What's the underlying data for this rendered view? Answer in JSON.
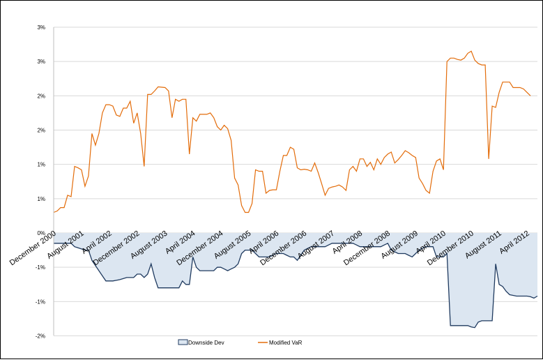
{
  "chart_data": {
    "type": "line",
    "title": "",
    "xlabel": "",
    "ylabel": "",
    "ylim": [
      -0.02,
      0.03
    ],
    "grid": true,
    "legend_position": "bottom",
    "colors": {
      "downside_fill": "#dce6f1",
      "downside_line": "#1f3a5f",
      "var_line": "#e36c0a",
      "grid": "#d9d9d9"
    },
    "y_tick_labels": [
      {
        "value": 0.03,
        "label": "3%"
      },
      {
        "value": 0.025,
        "label": "3%"
      },
      {
        "value": 0.02,
        "label": "2%"
      },
      {
        "value": 0.015,
        "label": "2%"
      },
      {
        "value": 0.01,
        "label": "1%"
      },
      {
        "value": 0.005,
        "label": "1%"
      },
      {
        "value": 0.0,
        "label": "0%"
      },
      {
        "value": -0.005,
        "label": "-1%"
      },
      {
        "value": -0.01,
        "label": "-1%"
      },
      {
        "value": -0.015,
        "label": "-2%"
      }
    ],
    "x_tick_labels": [
      {
        "index": 0,
        "label": "December 2000"
      },
      {
        "index": 8,
        "label": "August 2001"
      },
      {
        "index": 16,
        "label": "April 2002"
      },
      {
        "index": 24,
        "label": "December 2002"
      },
      {
        "index": 32,
        "label": "August 2003"
      },
      {
        "index": 40,
        "label": "April 2004"
      },
      {
        "index": 48,
        "label": "December 2004"
      },
      {
        "index": 56,
        "label": "August 2005"
      },
      {
        "index": 64,
        "label": "April 2006"
      },
      {
        "index": 72,
        "label": "December 2006"
      },
      {
        "index": 80,
        "label": "August 2007"
      },
      {
        "index": 88,
        "label": "April 2008"
      },
      {
        "index": 96,
        "label": "December 2008"
      },
      {
        "index": 104,
        "label": "August 2009"
      },
      {
        "index": 112,
        "label": "April 2010"
      },
      {
        "index": 120,
        "label": "December 2010"
      },
      {
        "index": 128,
        "label": "August 2011"
      },
      {
        "index": 136,
        "label": "April 2012"
      }
    ],
    "series": [
      {
        "name": "Downside Dev",
        "type": "area",
        "anchors": [
          [
            0,
            -0.0015
          ],
          [
            5,
            -0.0015
          ],
          [
            6,
            -0.002
          ],
          [
            9,
            -0.0025
          ],
          [
            10,
            -0.0025
          ],
          [
            11,
            -0.004
          ],
          [
            13,
            -0.0055
          ],
          [
            15,
            -0.007
          ],
          [
            17,
            -0.007
          ],
          [
            19,
            -0.0068
          ],
          [
            21,
            -0.0065
          ],
          [
            23,
            -0.0065
          ],
          [
            24,
            -0.006
          ],
          [
            25,
            -0.006
          ],
          [
            26,
            -0.0065
          ],
          [
            27,
            -0.006
          ],
          [
            28,
            -0.0045
          ],
          [
            29,
            -0.0065
          ],
          [
            30,
            -0.008
          ],
          [
            32,
            -0.008
          ],
          [
            35,
            -0.008
          ],
          [
            36,
            -0.008
          ],
          [
            37,
            -0.007
          ],
          [
            38,
            -0.0075
          ],
          [
            39,
            -0.0075
          ],
          [
            40,
            -0.0035
          ],
          [
            41,
            -0.005
          ],
          [
            42,
            -0.0055
          ],
          [
            44,
            -0.0055
          ],
          [
            46,
            -0.0055
          ],
          [
            47,
            -0.005
          ],
          [
            48,
            -0.005
          ],
          [
            50,
            -0.0055
          ],
          [
            52,
            -0.005
          ],
          [
            53,
            -0.0045
          ],
          [
            54,
            -0.003
          ],
          [
            55,
            -0.0025
          ],
          [
            57,
            -0.0025
          ],
          [
            59,
            -0.0035
          ],
          [
            60,
            -0.0035
          ],
          [
            62,
            -0.0035
          ],
          [
            64,
            -0.003
          ],
          [
            66,
            -0.003
          ],
          [
            68,
            -0.0035
          ],
          [
            69,
            -0.0035
          ],
          [
            70,
            -0.004
          ],
          [
            72,
            -0.0025
          ],
          [
            74,
            -0.002
          ],
          [
            76,
            -0.002
          ],
          [
            78,
            -0.002
          ],
          [
            80,
            -0.0015
          ],
          [
            82,
            -0.0015
          ],
          [
            84,
            -0.0015
          ],
          [
            86,
            -0.0015
          ],
          [
            88,
            -0.002
          ],
          [
            90,
            -0.002
          ],
          [
            92,
            -0.002
          ],
          [
            94,
            -0.002
          ],
          [
            96,
            -0.0015
          ],
          [
            97,
            -0.0025
          ],
          [
            99,
            -0.003
          ],
          [
            101,
            -0.003
          ],
          [
            103,
            -0.0035
          ],
          [
            105,
            -0.0025
          ],
          [
            107,
            -0.002
          ],
          [
            109,
            -0.002
          ],
          [
            110,
            -0.0035
          ],
          [
            111,
            -0.0035
          ],
          [
            112,
            -0.0035
          ],
          [
            113,
            -0.003
          ],
          [
            114,
            -0.0135
          ],
          [
            115,
            -0.0135
          ],
          [
            117,
            -0.0135
          ],
          [
            119,
            -0.0135
          ],
          [
            120,
            -0.0137
          ],
          [
            121,
            -0.0138
          ],
          [
            122,
            -0.013
          ],
          [
            123,
            -0.0128
          ],
          [
            124,
            -0.0128
          ],
          [
            125,
            -0.0128
          ],
          [
            126,
            -0.0128
          ],
          [
            127,
            -0.0045
          ],
          [
            128,
            -0.0075
          ],
          [
            129,
            -0.0078
          ],
          [
            130,
            -0.0085
          ],
          [
            131,
            -0.009
          ],
          [
            133,
            -0.0092
          ],
          [
            135,
            -0.0092
          ],
          [
            136,
            -0.0092
          ],
          [
            137,
            -0.0093
          ],
          [
            138,
            -0.0095
          ],
          [
            139,
            -0.0092
          ]
        ]
      },
      {
        "name": "Modified VaR",
        "type": "line",
        "anchors": [
          [
            0,
            0.003
          ],
          [
            1,
            0.0032
          ],
          [
            2,
            0.0037
          ],
          [
            3,
            0.0037
          ],
          [
            4,
            0.0055
          ],
          [
            5,
            0.0053
          ],
          [
            6,
            0.0097
          ],
          [
            7,
            0.0095
          ],
          [
            8,
            0.0092
          ],
          [
            9,
            0.0068
          ],
          [
            10,
            0.0083
          ],
          [
            11,
            0.0145
          ],
          [
            12,
            0.0128
          ],
          [
            13,
            0.0145
          ],
          [
            14,
            0.0175
          ],
          [
            15,
            0.0187
          ],
          [
            16,
            0.0187
          ],
          [
            17,
            0.0185
          ],
          [
            18,
            0.0172
          ],
          [
            19,
            0.017
          ],
          [
            20,
            0.0182
          ],
          [
            21,
            0.0182
          ],
          [
            22,
            0.0192
          ],
          [
            23,
            0.016
          ],
          [
            24,
            0.0175
          ],
          [
            25,
            0.0145
          ],
          [
            26,
            0.0097
          ],
          [
            27,
            0.0202
          ],
          [
            28,
            0.0202
          ],
          [
            29,
            0.0207
          ],
          [
            30,
            0.0213
          ],
          [
            32,
            0.0212
          ],
          [
            33,
            0.0207
          ],
          [
            34,
            0.0168
          ],
          [
            35,
            0.0195
          ],
          [
            36,
            0.0192
          ],
          [
            37,
            0.0195
          ],
          [
            38,
            0.0195
          ],
          [
            39,
            0.0115
          ],
          [
            40,
            0.0168
          ],
          [
            41,
            0.0163
          ],
          [
            42,
            0.0173
          ],
          [
            44,
            0.0173
          ],
          [
            45,
            0.0175
          ],
          [
            46,
            0.0168
          ],
          [
            47,
            0.0155
          ],
          [
            48,
            0.015
          ],
          [
            49,
            0.0157
          ],
          [
            50,
            0.0152
          ],
          [
            51,
            0.0135
          ],
          [
            52,
            0.008
          ],
          [
            53,
            0.007
          ],
          [
            54,
            0.004
          ],
          [
            55,
            0.003
          ],
          [
            56,
            0.003
          ],
          [
            57,
            0.0043
          ],
          [
            58,
            0.0092
          ],
          [
            59,
            0.009
          ],
          [
            60,
            0.009
          ],
          [
            61,
            0.0058
          ],
          [
            62,
            0.0062
          ],
          [
            63,
            0.0063
          ],
          [
            64,
            0.0063
          ],
          [
            65,
            0.009
          ],
          [
            66,
            0.0113
          ],
          [
            67,
            0.0113
          ],
          [
            68,
            0.0125
          ],
          [
            69,
            0.0122
          ],
          [
            70,
            0.0095
          ],
          [
            71,
            0.0092
          ],
          [
            72,
            0.0093
          ],
          [
            73,
            0.0092
          ],
          [
            74,
            0.009
          ],
          [
            75,
            0.0102
          ],
          [
            76,
            0.0088
          ],
          [
            77,
            0.0072
          ],
          [
            78,
            0.0055
          ],
          [
            79,
            0.0065
          ],
          [
            80,
            0.0067
          ],
          [
            81,
            0.0068
          ],
          [
            82,
            0.007
          ],
          [
            83,
            0.0067
          ],
          [
            84,
            0.0062
          ],
          [
            85,
            0.0092
          ],
          [
            86,
            0.0097
          ],
          [
            87,
            0.009
          ],
          [
            88,
            0.0108
          ],
          [
            89,
            0.0108
          ],
          [
            90,
            0.0097
          ],
          [
            91,
            0.0103
          ],
          [
            92,
            0.0092
          ],
          [
            93,
            0.0108
          ],
          [
            94,
            0.01
          ],
          [
            95,
            0.011
          ],
          [
            96,
            0.0115
          ],
          [
            97,
            0.0118
          ],
          [
            98,
            0.0102
          ],
          [
            99,
            0.0107
          ],
          [
            100,
            0.0113
          ],
          [
            101,
            0.012
          ],
          [
            102,
            0.0117
          ],
          [
            103,
            0.0113
          ],
          [
            104,
            0.011
          ],
          [
            105,
            0.008
          ],
          [
            106,
            0.0072
          ],
          [
            107,
            0.0062
          ],
          [
            108,
            0.0058
          ],
          [
            109,
            0.009
          ],
          [
            110,
            0.0105
          ],
          [
            111,
            0.0108
          ],
          [
            112,
            0.0092
          ],
          [
            113,
            0.025
          ],
          [
            114,
            0.0255
          ],
          [
            115,
            0.0255
          ],
          [
            116,
            0.0253
          ],
          [
            117,
            0.0252
          ],
          [
            118,
            0.0255
          ],
          [
            119,
            0.0262
          ],
          [
            120,
            0.0265
          ],
          [
            121,
            0.0252
          ],
          [
            122,
            0.0247
          ],
          [
            123,
            0.0245
          ],
          [
            124,
            0.0245
          ],
          [
            125,
            0.0108
          ],
          [
            126,
            0.0185
          ],
          [
            127,
            0.0183
          ],
          [
            128,
            0.0205
          ],
          [
            129,
            0.022
          ],
          [
            130,
            0.022
          ],
          [
            131,
            0.022
          ],
          [
            132,
            0.0212
          ],
          [
            134,
            0.0212
          ],
          [
            135,
            0.021
          ],
          [
            136,
            0.0205
          ],
          [
            137,
            0.02
          ]
        ]
      }
    ]
  }
}
